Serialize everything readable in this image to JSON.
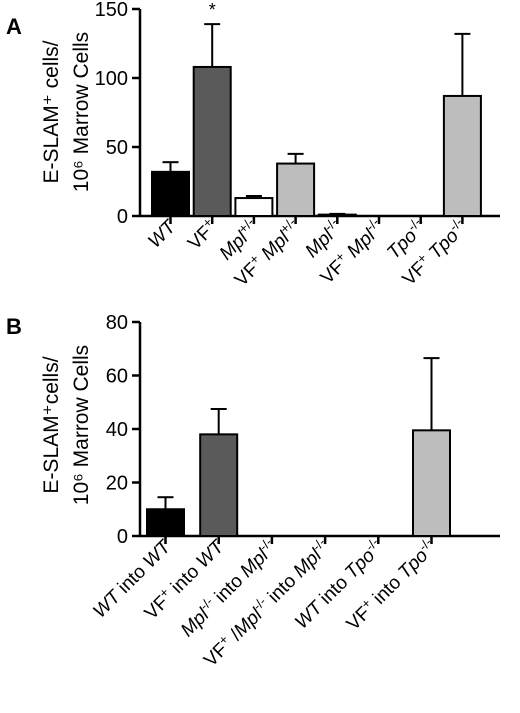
{
  "chart_data": [
    {
      "panel": "A",
      "type": "bar",
      "ylabel": [
        "E-SLAM⁺ cells/",
        "10⁶ Marrow Cells"
      ],
      "ylim": [
        0,
        150
      ],
      "yticks": [
        0,
        50,
        100,
        150
      ],
      "categories": [
        {
          "parts": [
            {
              "t": "WT",
              "i": true
            }
          ]
        },
        {
          "parts": [
            {
              "t": "VF",
              "i": false
            },
            {
              "t": "+",
              "i": false,
              "sup": true
            }
          ]
        },
        {
          "parts": [
            {
              "t": "Mpl",
              "i": true
            },
            {
              "t": "+/-",
              "i": false,
              "sup": true
            }
          ]
        },
        {
          "parts": [
            {
              "t": "VF",
              "i": false
            },
            {
              "t": "+",
              "i": false,
              "sup": true
            },
            {
              "t": " Mpl",
              "i": true
            },
            {
              "t": "+/-",
              "i": false,
              "sup": true
            }
          ]
        },
        {
          "parts": [
            {
              "t": "Mpl",
              "i": true
            },
            {
              "t": "-/-",
              "i": false,
              "sup": true
            }
          ]
        },
        {
          "parts": [
            {
              "t": "VF",
              "i": false
            },
            {
              "t": "+",
              "i": false,
              "sup": true
            },
            {
              "t": " Mpl",
              "i": true
            },
            {
              "t": "-/-",
              "i": false,
              "sup": true
            }
          ]
        },
        {
          "parts": [
            {
              "t": "Tpo",
              "i": true
            },
            {
              "t": "-/-",
              "i": false,
              "sup": true
            }
          ]
        },
        {
          "parts": [
            {
              "t": "VF",
              "i": false
            },
            {
              "t": "+",
              "i": false,
              "sup": true
            },
            {
              "t": " Tpo",
              "i": true
            },
            {
              "t": "-/-",
              "i": false,
              "sup": true
            }
          ]
        }
      ],
      "values": [
        32,
        108,
        13,
        38,
        1,
        0,
        0,
        87
      ],
      "errors": [
        7,
        31,
        1.5,
        7,
        0.5,
        0,
        0,
        45
      ],
      "colors": [
        "#000000",
        "#5a5a5a",
        "#ffffff",
        "#bdbdbd",
        "#000000",
        "#000000",
        "#000000",
        "#bdbdbd"
      ],
      "annotations": [
        {
          "index": 1,
          "text": "*"
        }
      ]
    },
    {
      "panel": "B",
      "type": "bar",
      "ylabel": [
        "E-SLAM⁺cells/",
        "10⁶ Marrow Cells"
      ],
      "ylim": [
        0,
        80
      ],
      "yticks": [
        0,
        20,
        40,
        60,
        80
      ],
      "categories": [
        {
          "parts": [
            {
              "t": "WT",
              "i": true
            },
            {
              "t": " into ",
              "i": false
            },
            {
              "t": "WT",
              "i": true
            }
          ]
        },
        {
          "parts": [
            {
              "t": "VF",
              "i": false
            },
            {
              "t": "+",
              "i": false,
              "sup": true
            },
            {
              "t": " into ",
              "i": false
            },
            {
              "t": "WT",
              "i": true
            }
          ]
        },
        {
          "parts": [
            {
              "t": "Mpl",
              "i": true
            },
            {
              "t": "-/-",
              "i": false,
              "sup": true
            },
            {
              "t": " into ",
              "i": false
            },
            {
              "t": "Mpl",
              "i": true
            },
            {
              "t": "-/-",
              "i": false,
              "sup": true
            }
          ]
        },
        {
          "parts": [
            {
              "t": "VF",
              "i": false
            },
            {
              "t": "+",
              "i": false,
              "sup": true
            },
            {
              "t": " /",
              "i": false
            },
            {
              "t": "Mpl",
              "i": true
            },
            {
              "t": "-/-",
              "i": false,
              "sup": true
            },
            {
              "t": " into ",
              "i": false
            },
            {
              "t": "Mpl",
              "i": true
            },
            {
              "t": "-/-",
              "i": false,
              "sup": true
            }
          ]
        },
        {
          "parts": [
            {
              "t": "WT",
              "i": true
            },
            {
              "t": " into ",
              "i": false
            },
            {
              "t": "Tpo",
              "i": true
            },
            {
              "t": "-/-",
              "i": false,
              "sup": true
            }
          ]
        },
        {
          "parts": [
            {
              "t": "VF",
              "i": false
            },
            {
              "t": "+",
              "i": false,
              "sup": true
            },
            {
              "t": " into ",
              "i": false
            },
            {
              "t": "Tpo",
              "i": true
            },
            {
              "t": "-/-",
              "i": false,
              "sup": true
            }
          ]
        }
      ],
      "values": [
        10,
        38,
        0,
        0,
        0,
        39.5
      ],
      "errors": [
        4.5,
        9.5,
        0,
        0,
        0,
        27
      ],
      "colors": [
        "#000000",
        "#5a5a5a",
        "#000000",
        "#000000",
        "#000000",
        "#bdbdbd"
      ],
      "annotations": []
    }
  ]
}
